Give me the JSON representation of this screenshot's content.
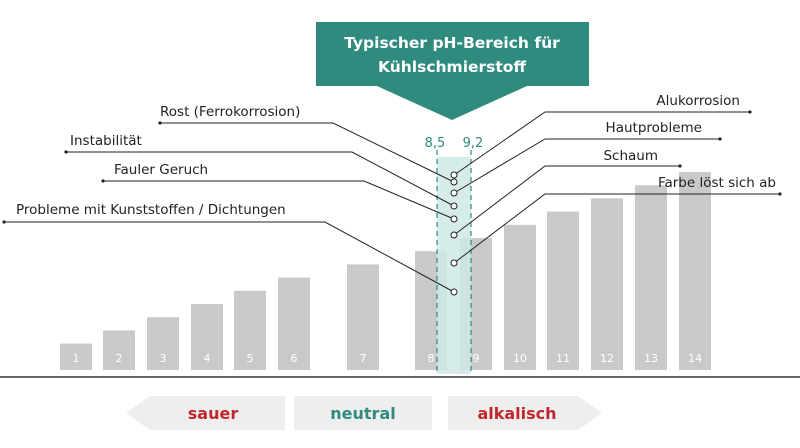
{
  "banner": {
    "line1": "Typischer pH-Bereich für",
    "line2": "Kühlschmierstoff",
    "color": "#2e8b7e"
  },
  "range": {
    "low": "8,5",
    "high": "9,2",
    "low_value": 8.5,
    "high_value": 9.2,
    "color": "#2e8b7e",
    "fill": "#cfe9e6"
  },
  "bar_color": "#c9c9c9",
  "chart_data": {
    "type": "bar",
    "categories": [
      "1",
      "2",
      "3",
      "4",
      "5",
      "6",
      "7",
      "8",
      "9",
      "10",
      "11",
      "12",
      "13",
      "14"
    ],
    "values": [
      2,
      3,
      4,
      5,
      6,
      7,
      8,
      9,
      10,
      11,
      12,
      13,
      14,
      15
    ],
    "title": "",
    "xlabel": "",
    "ylabel": ""
  },
  "left_labels": [
    {
      "text": "Rost (Ferrokorrosion)"
    },
    {
      "text": "Instabilität"
    },
    {
      "text": "Fauler Geruch"
    },
    {
      "text": "Probleme mit Kunststoffen / Dichtungen"
    }
  ],
  "right_labels": [
    {
      "text": "Alukorrosion"
    },
    {
      "text": "Hautprobleme"
    },
    {
      "text": "Schaum"
    },
    {
      "text": "Farbe löst sich ab"
    }
  ],
  "scale": {
    "acid": {
      "text": "sauer",
      "color": "#c0282d"
    },
    "neutral": {
      "text": "neutral",
      "color": "#2e8b7e"
    },
    "alkaline": {
      "text": "alkalisch",
      "color": "#c0282d"
    },
    "arrow_fill": "#eeeeee"
  }
}
